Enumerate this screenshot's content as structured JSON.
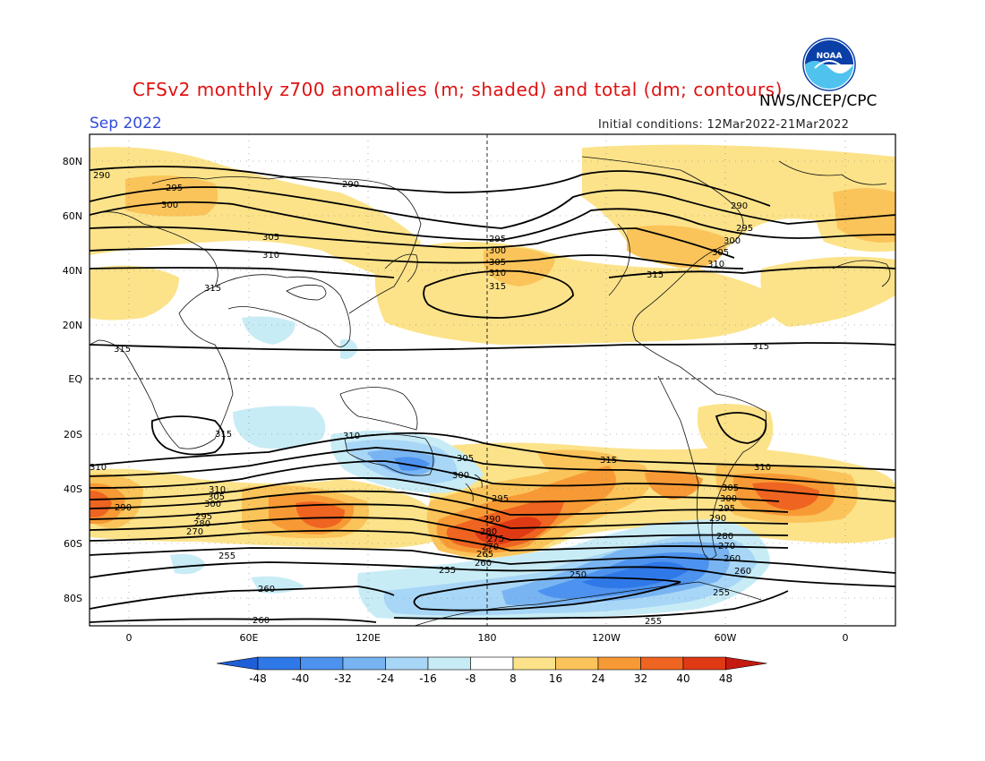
{
  "title": "CFSv2 monthly z700 anomalies (m; shaded) and total (dm; contours)",
  "agency": "NWS/NCEP/CPC",
  "logo_text": "NOAA",
  "month": "Sep 2022",
  "initial_conditions": "Initial conditions: 12Mar2022-21Mar2022",
  "lat_labels": [
    "80N",
    "60N",
    "40N",
    "20N",
    "EQ",
    "20S",
    "40S",
    "60S",
    "80S"
  ],
  "lon_labels": [
    "0",
    "60E",
    "120E",
    "180",
    "120W",
    "60W",
    "0"
  ],
  "colorbar": {
    "ticks": [
      "-48",
      "-40",
      "-32",
      "-24",
      "-16",
      "-8",
      "8",
      "16",
      "24",
      "32",
      "40",
      "48"
    ],
    "colors": [
      "#1e5fd8",
      "#2f78e8",
      "#4c92ee",
      "#78b4f2",
      "#a8d6f6",
      "#c8ecf6",
      "#ffffff",
      "#fce38a",
      "#fbc45a",
      "#f79a35",
      "#ef6420",
      "#e03a14",
      "#c41a10"
    ]
  },
  "contour_labels": [
    "290",
    "295",
    "300",
    "290",
    "305",
    "310",
    "315",
    "295",
    "300",
    "305",
    "310",
    "315",
    "290",
    "295",
    "300",
    "305",
    "310",
    "315",
    "315",
    "315",
    "310",
    "305",
    "300",
    "295",
    "290",
    "285",
    "280",
    "275",
    "270",
    "265",
    "260",
    "255",
    "305",
    "300",
    "295",
    "290",
    "285",
    "280",
    "275",
    "270",
    "265",
    "260",
    "255",
    "310",
    "305",
    "300",
    "295",
    "290",
    "285",
    "280",
    "275",
    "270",
    "265",
    "260",
    "255",
    "250",
    "260",
    "255",
    "255",
    "260",
    "315",
    "310"
  ]
}
